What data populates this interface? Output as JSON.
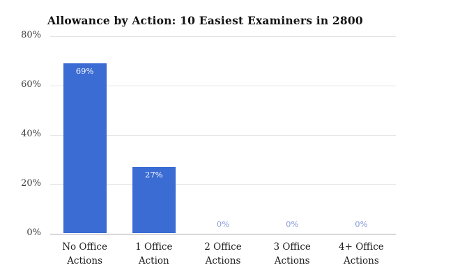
{
  "chart_data": {
    "type": "bar",
    "title": "Allowance by Action: 10 Easiest Examiners in 2800",
    "categories": [
      "No Office Actions",
      "1 Office Action",
      "2 Office Actions",
      "3 Office Actions",
      "4+ Office Actions"
    ],
    "values": [
      69,
      27,
      0,
      0,
      0
    ],
    "value_labels": [
      "69%",
      "27%",
      "0%",
      "0%",
      "0%"
    ],
    "xlabel": "",
    "ylabel": "",
    "ylim": [
      0,
      80
    ],
    "yticks": [
      0,
      20,
      40,
      60,
      80
    ],
    "ytick_labels": [
      "0%",
      "20%",
      "40%",
      "60%",
      "80%"
    ],
    "grid": true,
    "legend": "none",
    "colors": {
      "bar": "#3b6cd4",
      "value_label_inside": "#ffffff",
      "value_label_zero": "#8699d6",
      "gridline": "#e3e3e3",
      "axis_line": "#a9a9a9",
      "title_text": "#141414",
      "axis_text": "#3d3d3d",
      "category_text": "#212121",
      "background": "#ffffff"
    }
  }
}
